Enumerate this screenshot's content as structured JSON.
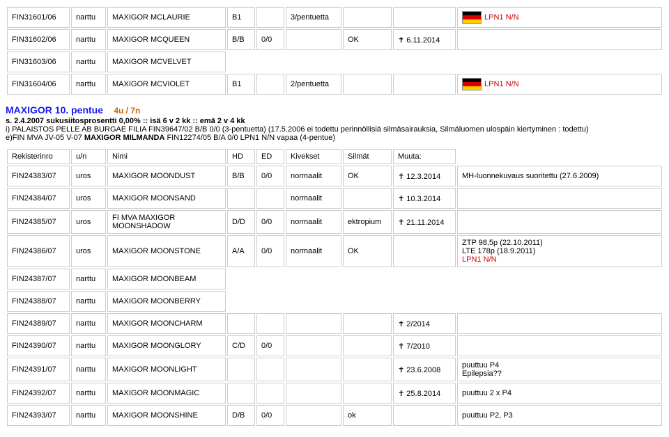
{
  "top_rows": [
    {
      "reg": "FIN31601/06",
      "un": "narttu",
      "nimi": "MAXIGOR MCLAURIE",
      "hd": "B1",
      "ed": "",
      "kiv": "3/pentuetta",
      "sil": "",
      "muu": "",
      "ext_flag": true,
      "ext_text": "LPN1 N/N",
      "ext_red": true
    },
    {
      "reg": "FIN31602/06",
      "un": "narttu",
      "nimi": "MAXIGOR MCQUEEN",
      "hd": "B/B",
      "ed": "0/0",
      "kiv": "",
      "sil": "OK",
      "muu": "✝ 6.11.2014",
      "ext_flag": false,
      "ext_text": "",
      "ext_red": false
    },
    {
      "reg": "FIN31603/06",
      "un": "narttu",
      "nimi": "MAXIGOR MCVELVET",
      "hd": "",
      "ed": "",
      "kiv": "",
      "sil": "",
      "muu": "",
      "ext_flag": false,
      "ext_text": "",
      "ext_red": false,
      "short": true
    },
    {
      "reg": "FIN31604/06",
      "un": "narttu",
      "nimi": "MAXIGOR MCVIOLET",
      "hd": "B1",
      "ed": "",
      "kiv": "2/pentuetta",
      "sil": "",
      "muu": "",
      "ext_flag": true,
      "ext_text": "LPN1 N/N",
      "ext_red": true
    }
  ],
  "litter": {
    "title": "MAXIGOR 10. pentue",
    "sub": "4u / 7n",
    "meta": "s. 2.4.2007   sukusiitosprosentti 0,00% :: isä 6 v 2 kk :: emä 2 v 4 kk",
    "desc_line1": "i) PALAISTOS PELLE AB BURGAE FILIA FIN39647/02 B/B 0/0 (3-pentuetta) (17.5.2006 ei todettu perinnöllisiä silmäsairauksia, Silmäluomen ulospäin kiertyminen : todettu)",
    "desc_line2_a": "e)FIN MVA JV-05 V-07 ",
    "desc_line2_b": "MAXIGOR MILMANDA",
    "desc_line2_c": " FIN12274/05 B/A 0/0 LPN1 N/N vapaa (4-pentue)"
  },
  "headers": {
    "reg": "Rekisterinro",
    "un": "u/n",
    "nimi": "Nimi",
    "hd": "HD",
    "ed": "ED",
    "kiv": "Kivekset",
    "sil": "Silmät",
    "muu": "Muuta:"
  },
  "rows": [
    {
      "reg": "FIN24383/07",
      "un": "uros",
      "nimi": "MAXIGOR MOONDUST",
      "hd": "B/B",
      "ed": "0/0",
      "kiv": "normaalit",
      "sil": "OK",
      "muu": "✝ 12.3.2014",
      "ext": "MH-luonnekuvaus suoritettu (27.6.2009)"
    },
    {
      "reg": "FIN24384/07",
      "un": "uros",
      "nimi": "MAXIGOR MOONSAND",
      "hd": "",
      "ed": "",
      "kiv": "normaalit",
      "sil": "",
      "muu": "✝ 10.3.2014",
      "ext": ""
    },
    {
      "reg": "FIN24385/07",
      "un": "uros",
      "nimi": "FI MVA MAXIGOR MOONSHADOW",
      "hd": "D/D",
      "ed": "0/0",
      "kiv": "normaalit",
      "sil": "ektropium",
      "muu": "✝ 21.11.2014",
      "ext": ""
    },
    {
      "reg": "FIN24386/07",
      "un": "uros",
      "nimi": "MAXIGOR MOONSTONE",
      "hd": "A/A",
      "ed": "0/0",
      "kiv": "normaalit",
      "sil": "OK",
      "muu": "",
      "ext": "ZTP 98,5p (22.10.2011)\nLTE 178p (18.9.2011)",
      "ext_append_red": "LPN1 N/N"
    },
    {
      "reg": "FIN24387/07",
      "un": "narttu",
      "nimi": "MAXIGOR MOONBEAM",
      "hd": "",
      "ed": "",
      "kiv": "",
      "sil": "",
      "muu": "",
      "ext": "",
      "short": true
    },
    {
      "reg": "FIN24388/07",
      "un": "narttu",
      "nimi": "MAXIGOR MOONBERRY",
      "hd": "",
      "ed": "",
      "kiv": "",
      "sil": "",
      "muu": "",
      "ext": "",
      "short": true
    },
    {
      "reg": "FIN24389/07",
      "un": "narttu",
      "nimi": "MAXIGOR MOONCHARM",
      "hd": "",
      "ed": "",
      "kiv": "",
      "sil": "",
      "muu": "✝ 2/2014",
      "ext": ""
    },
    {
      "reg": "FIN24390/07",
      "un": "narttu",
      "nimi": "MAXIGOR MOONGLORY",
      "hd": "C/D",
      "ed": "0/0",
      "kiv": "",
      "sil": "",
      "muu": "✝ 7/2010",
      "ext": ""
    },
    {
      "reg": "FIN24391/07",
      "un": "narttu",
      "nimi": "MAXIGOR MOONLIGHT",
      "hd": "",
      "ed": "",
      "kiv": "",
      "sil": "",
      "muu": "✝ 23.6.2008",
      "ext": "puuttuu P4\nEpilepsia??"
    },
    {
      "reg": "FIN24392/07",
      "un": "narttu",
      "nimi": "MAXIGOR MOONMAGIC",
      "hd": "",
      "ed": "",
      "kiv": "",
      "sil": "",
      "muu": "✝ 25.8.2014",
      "ext": "puuttuu 2 x P4"
    },
    {
      "reg": "FIN24393/07",
      "un": "narttu",
      "nimi": "MAXIGOR MOONSHINE",
      "hd": "D/B",
      "ed": "0/0",
      "kiv": "",
      "sil": "ok",
      "muu": "",
      "ext": "puuttuu P2, P3"
    }
  ]
}
